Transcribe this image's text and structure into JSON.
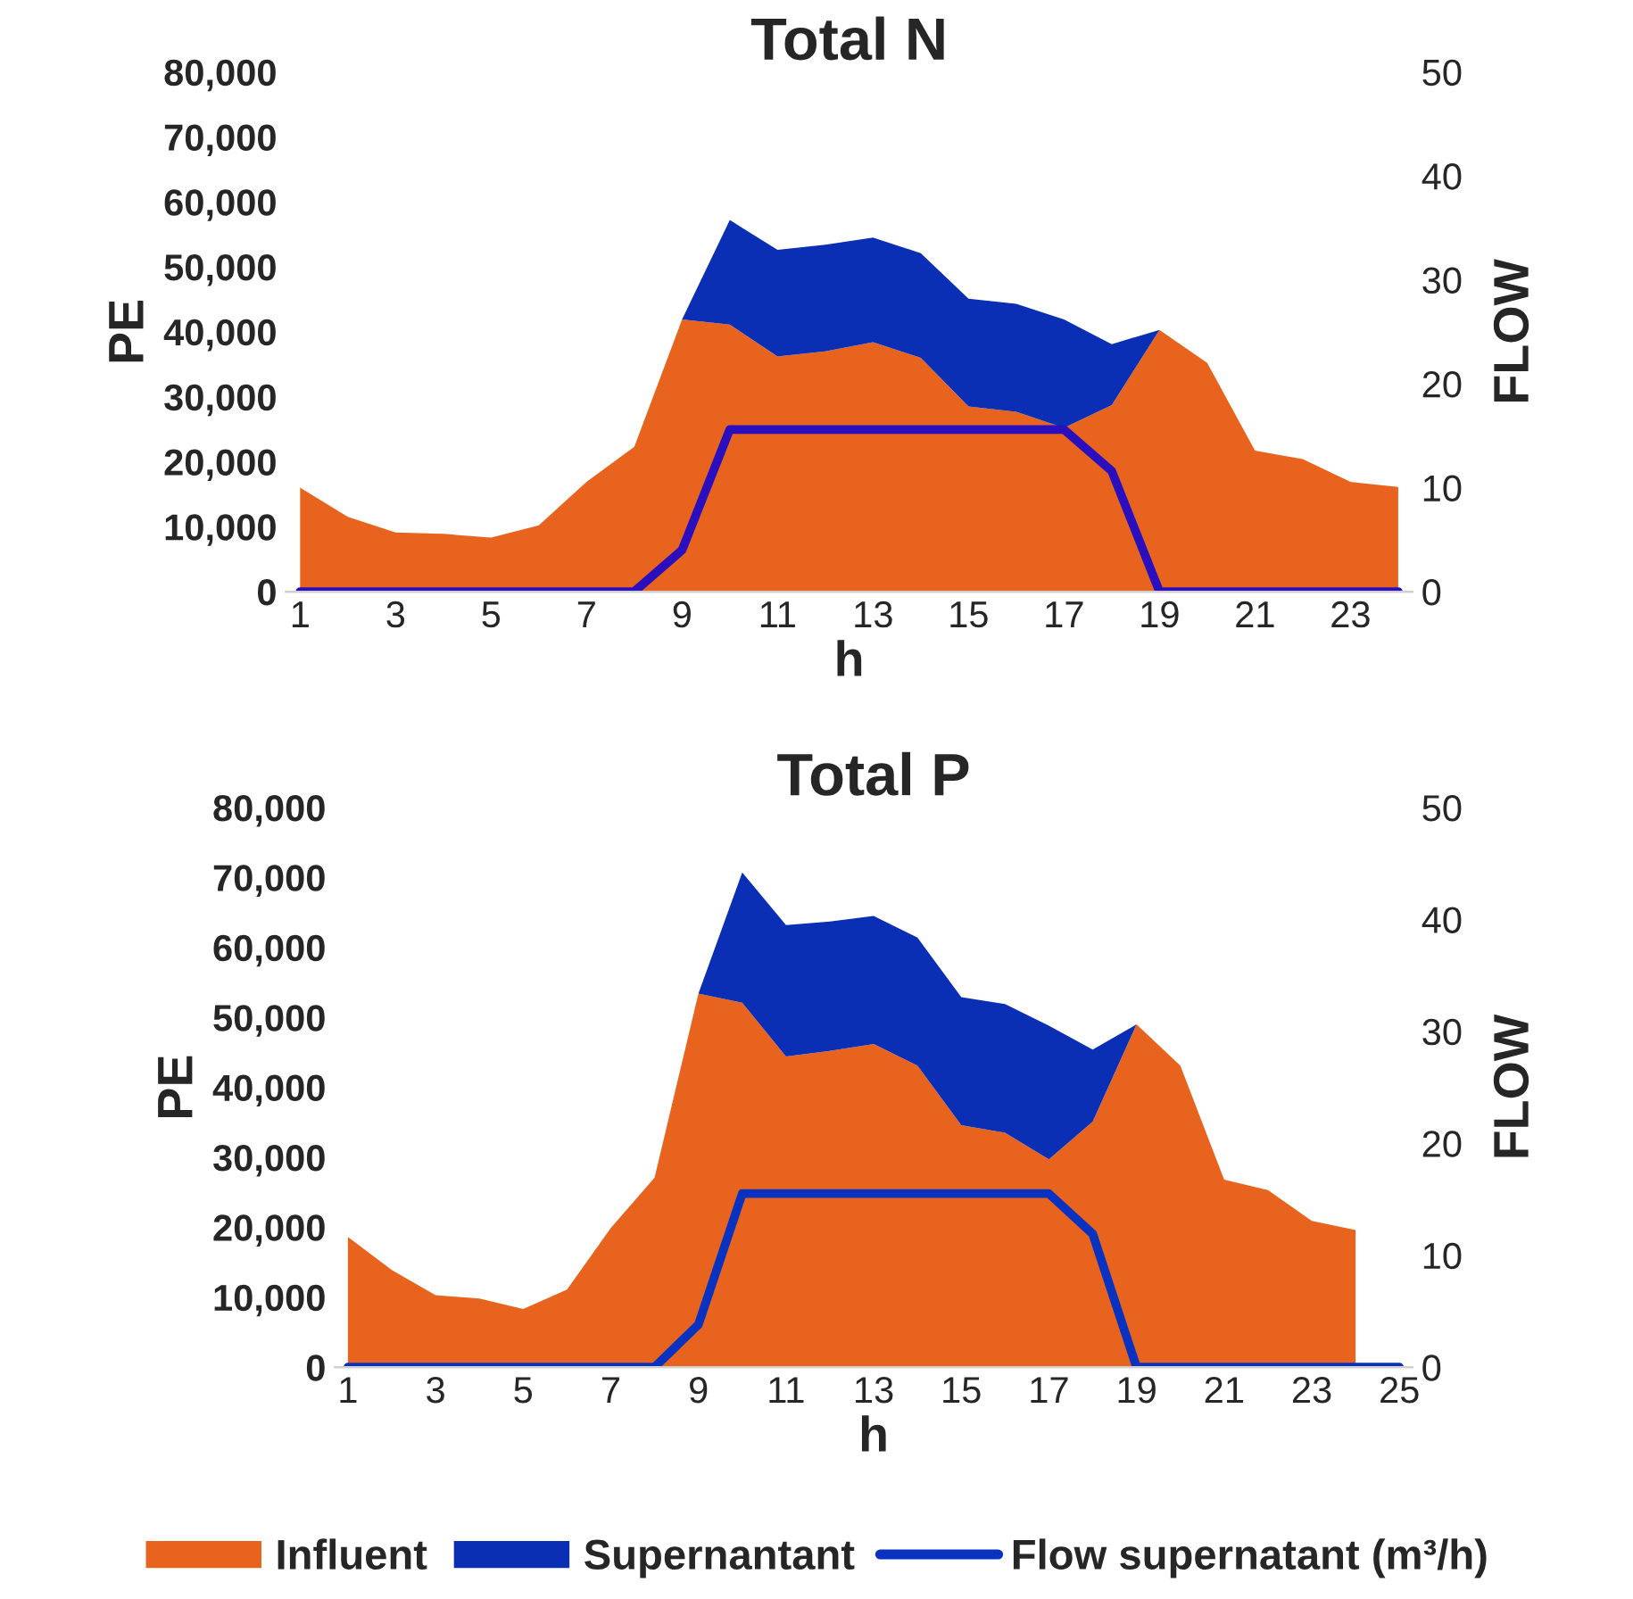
{
  "chart_data": [
    {
      "type": "area",
      "title": "Total N",
      "xlabel": "h",
      "ylabel": "PE",
      "y2label": "FLOW",
      "stacked": true,
      "categories": [
        "1",
        null,
        "3",
        null,
        "5",
        null,
        "7",
        null,
        "9",
        null,
        "11",
        null,
        "13",
        null,
        "15",
        null,
        "17",
        null,
        "19",
        null,
        "21",
        null,
        "23",
        null
      ],
      "series": [
        {
          "color": "#e8641e",
          "values": [
            16000,
            11500,
            9100,
            8900,
            8300,
            10200,
            16900,
            22300,
            41900,
            41100,
            36200,
            37000,
            38400,
            36000,
            28500,
            27700,
            25200,
            28700,
            40300,
            35200,
            21700,
            20400,
            16900,
            16100
          ]
        },
        {
          "color": "#0a2fb5",
          "values": [
            null,
            null,
            null,
            null,
            null,
            null,
            null,
            null,
            0,
            16100,
            16400,
            16400,
            16100,
            16100,
            16600,
            16600,
            16700,
            9400,
            0,
            null,
            null,
            null,
            null,
            null
          ]
        },
        {
          "type": "line",
          "axis": "y2",
          "color": "#2a0fbe",
          "values": [
            0,
            0,
            0,
            0,
            0,
            0,
            0,
            0,
            4,
            15.6,
            15.6,
            15.6,
            15.6,
            15.6,
            15.6,
            15.6,
            15.6,
            11.6,
            0,
            0,
            0,
            0,
            0,
            0
          ]
        }
      ],
      "ylim": [
        0,
        80000
      ],
      "yticks": [
        {
          "value": 0,
          "label": "0"
        },
        {
          "value": 10000,
          "label": "10,000"
        },
        {
          "value": 20000,
          "label": "20,000"
        },
        {
          "value": 30000,
          "label": "30,000"
        },
        {
          "value": 40000,
          "label": "40,000"
        },
        {
          "value": 50000,
          "label": "50,000"
        },
        {
          "value": 60000,
          "label": "60,000"
        },
        {
          "value": 70000,
          "label": "70,000"
        },
        {
          "value": 80000,
          "label": "80,000"
        }
      ],
      "y2lim": [
        0,
        50
      ],
      "y2ticks": [
        0,
        10,
        20,
        30,
        40,
        50
      ]
    },
    {
      "type": "area",
      "title": "Total P",
      "xlabel": "h",
      "ylabel": "PE",
      "y2label": "FLOW",
      "stacked": true,
      "legend": "bottom",
      "categories": [
        "1",
        null,
        "3",
        null,
        "5",
        null,
        "7",
        null,
        "9",
        null,
        "11",
        null,
        "13",
        null,
        "15",
        null,
        "17",
        null,
        "19",
        null,
        "21",
        null,
        "23",
        null,
        "25"
      ],
      "series": [
        {
          "name": "Influent",
          "color": "#e8641e",
          "values": [
            18600,
            13900,
            10300,
            9800,
            8300,
            11100,
            19900,
            27100,
            53400,
            52100,
            44400,
            45200,
            46200,
            43100,
            34600,
            33500,
            29700,
            35100,
            49000,
            43100,
            26800,
            25300,
            20900,
            19600,
            null
          ]
        },
        {
          "name": "Supernantant",
          "color": "#0a2fb5",
          "values": [
            null,
            null,
            null,
            null,
            null,
            null,
            null,
            null,
            0,
            18600,
            18800,
            18500,
            18300,
            18300,
            18300,
            18400,
            19100,
            10300,
            0,
            null,
            null,
            null,
            null,
            null,
            null
          ]
        },
        {
          "type": "line",
          "name": "Flow supernatant (m³/h)",
          "axis": "y2",
          "color": "#0a32c0",
          "values": [
            0,
            0,
            0,
            0,
            0,
            0,
            0,
            0,
            3.8,
            15.5,
            15.5,
            15.5,
            15.5,
            15.5,
            15.5,
            15.5,
            15.5,
            11.9,
            0,
            0,
            0,
            0,
            0,
            0,
            0
          ]
        }
      ],
      "ylim": [
        0,
        80000
      ],
      "yticks": [
        {
          "value": 0,
          "label": "0"
        },
        {
          "value": 10000,
          "label": "10,000"
        },
        {
          "value": 20000,
          "label": "20,000"
        },
        {
          "value": 30000,
          "label": "30,000"
        },
        {
          "value": 40000,
          "label": "40,000"
        },
        {
          "value": 50000,
          "label": "50,000"
        },
        {
          "value": 60000,
          "label": "60,000"
        },
        {
          "value": 70000,
          "label": "70,000"
        },
        {
          "value": 80000,
          "label": "80,000"
        }
      ],
      "y2lim": [
        0,
        50
      ],
      "y2ticks": [
        0,
        10,
        20,
        30,
        40,
        50
      ]
    }
  ]
}
